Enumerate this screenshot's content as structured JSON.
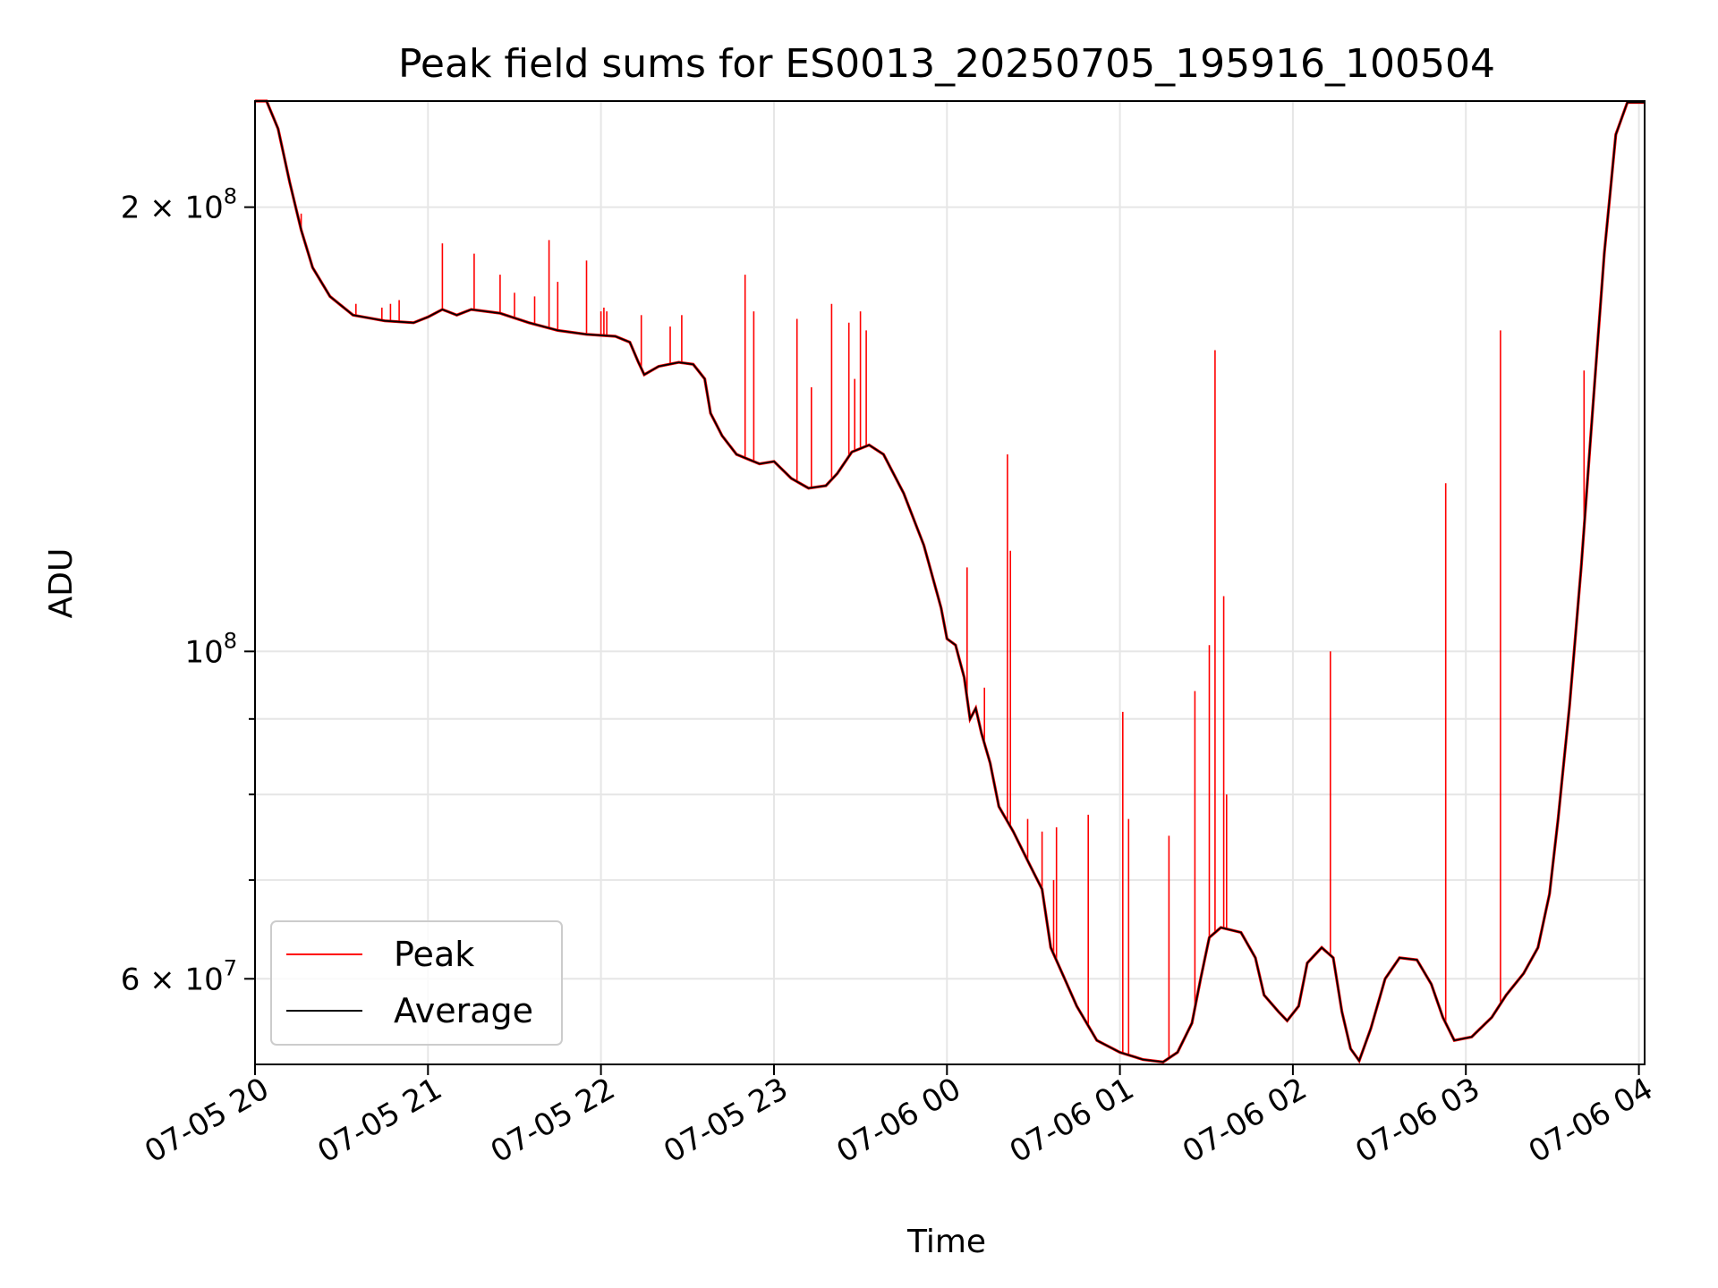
{
  "chart_data": {
    "type": "line",
    "title": "Peak field sums for ES0013_20250705_195916_100504",
    "xlabel": "Time",
    "ylabel": "ADU",
    "x_scale": "time",
    "y_scale": "log",
    "xlim": [
      "2025-07-05T20:00",
      "2025-07-06T04:02"
    ],
    "ylim": [
      52500000,
      236000000
    ],
    "x_ticks": [
      "2025-07-05T20:00",
      "2025-07-05T21:00",
      "2025-07-05T22:00",
      "2025-07-05T23:00",
      "2025-07-06T00:00",
      "2025-07-06T01:00",
      "2025-07-06T02:00",
      "2025-07-06T03:00",
      "2025-07-06T04:00"
    ],
    "x_tick_labels": [
      "07-05 20",
      "07-05 21",
      "07-05 22",
      "07-05 23",
      "07-06 00",
      "07-06 01",
      "07-06 02",
      "07-06 03",
      "07-06 04"
    ],
    "y_major_ticks": [
      {
        "value": 200000000,
        "mantissa": "2",
        "exponent": "8"
      },
      {
        "value": 100000000,
        "mantissa": "",
        "exponent": "8"
      },
      {
        "value": 60000000,
        "mantissa": "6",
        "exponent": "7"
      }
    ],
    "y_minor_ticks": [
      90000000,
      80000000,
      70000000
    ],
    "grid": true,
    "legend_position": "lower-left",
    "series": [
      {
        "name": "Peak",
        "color": "#ff0000",
        "role": "spikes",
        "points": [
          [
            "2025-07-05T20:16",
            198000000
          ],
          [
            "2025-07-05T20:18",
            188000000
          ],
          [
            "2025-07-05T20:35",
            172000000
          ],
          [
            "2025-07-05T20:44",
            171000000
          ],
          [
            "2025-07-05T20:47",
            172000000
          ],
          [
            "2025-07-05T20:50",
            173000000
          ],
          [
            "2025-07-05T21:05",
            189000000
          ],
          [
            "2025-07-05T21:16",
            186000000
          ],
          [
            "2025-07-05T21:25",
            180000000
          ],
          [
            "2025-07-05T21:30",
            175000000
          ],
          [
            "2025-07-05T21:37",
            174000000
          ],
          [
            "2025-07-05T21:42",
            190000000
          ],
          [
            "2025-07-05T21:45",
            178000000
          ],
          [
            "2025-07-05T21:55",
            184000000
          ],
          [
            "2025-07-05T22:00",
            170000000
          ],
          [
            "2025-07-05T22:01",
            171000000
          ],
          [
            "2025-07-05T22:02",
            170000000
          ],
          [
            "2025-07-05T22:14",
            169000000
          ],
          [
            "2025-07-05T22:24",
            166000000
          ],
          [
            "2025-07-05T22:28",
            169000000
          ],
          [
            "2025-07-05T22:50",
            180000000
          ],
          [
            "2025-07-05T22:53",
            170000000
          ],
          [
            "2025-07-05T23:08",
            168000000
          ],
          [
            "2025-07-05T23:13",
            151000000
          ],
          [
            "2025-07-05T23:20",
            172000000
          ],
          [
            "2025-07-05T23:26",
            167000000
          ],
          [
            "2025-07-05T23:30",
            170000000
          ],
          [
            "2025-07-05T23:32",
            165000000
          ],
          [
            "2025-07-05T23:28",
            153000000
          ],
          [
            "2025-07-06T00:07",
            114000000
          ],
          [
            "2025-07-06T00:13",
            94500000
          ],
          [
            "2025-07-06T00:21",
            136000000
          ],
          [
            "2025-07-06T00:22",
            117000000
          ],
          [
            "2025-07-06T00:28",
            77000000
          ],
          [
            "2025-07-06T00:33",
            75500000
          ],
          [
            "2025-07-06T00:37",
            70000000
          ],
          [
            "2025-07-06T00:38",
            76000000
          ],
          [
            "2025-07-06T00:49",
            77500000
          ],
          [
            "2025-07-06T01:01",
            91000000
          ],
          [
            "2025-07-06T01:03",
            77000000
          ],
          [
            "2025-07-06T01:17",
            75000000
          ],
          [
            "2025-07-06T01:26",
            94000000
          ],
          [
            "2025-07-06T01:31",
            101000000
          ],
          [
            "2025-07-06T01:33",
            160000000
          ],
          [
            "2025-07-06T01:36",
            109000000
          ],
          [
            "2025-07-06T01:37",
            80000000
          ],
          [
            "2025-07-06T02:13",
            100000000
          ],
          [
            "2025-07-06T02:53",
            130000000
          ],
          [
            "2025-07-06T03:12",
            165000000
          ],
          [
            "2025-07-06T03:41",
            155000000
          ]
        ]
      },
      {
        "name": "Average",
        "color": "#000000",
        "role": "baseline",
        "points": [
          [
            "2025-07-05T20:00",
            236000000
          ],
          [
            "2025-07-05T20:04",
            236000000
          ],
          [
            "2025-07-05T20:08",
            226000000
          ],
          [
            "2025-07-05T20:12",
            208000000
          ],
          [
            "2025-07-05T20:16",
            193000000
          ],
          [
            "2025-07-05T20:20",
            182000000
          ],
          [
            "2025-07-05T20:26",
            174000000
          ],
          [
            "2025-07-05T20:34",
            169000000
          ],
          [
            "2025-07-05T20:45",
            167500000
          ],
          [
            "2025-07-05T20:55",
            167000000
          ],
          [
            "2025-07-05T21:00",
            168500000
          ],
          [
            "2025-07-05T21:05",
            170500000
          ],
          [
            "2025-07-05T21:10",
            169000000
          ],
          [
            "2025-07-05T21:15",
            170500000
          ],
          [
            "2025-07-05T21:25",
            169500000
          ],
          [
            "2025-07-05T21:35",
            167000000
          ],
          [
            "2025-07-05T21:45",
            165000000
          ],
          [
            "2025-07-05T21:55",
            164000000
          ],
          [
            "2025-07-05T22:05",
            163500000
          ],
          [
            "2025-07-05T22:10",
            162000000
          ],
          [
            "2025-07-05T22:13",
            157000000
          ],
          [
            "2025-07-05T22:15",
            154000000
          ],
          [
            "2025-07-05T22:20",
            156000000
          ],
          [
            "2025-07-05T22:27",
            157000000
          ],
          [
            "2025-07-05T22:32",
            156500000
          ],
          [
            "2025-07-05T22:36",
            153000000
          ],
          [
            "2025-07-05T22:38",
            145000000
          ],
          [
            "2025-07-05T22:42",
            140000000
          ],
          [
            "2025-07-05T22:47",
            136000000
          ],
          [
            "2025-07-05T22:55",
            134000000
          ],
          [
            "2025-07-05T23:00",
            134500000
          ],
          [
            "2025-07-05T23:06",
            131000000
          ],
          [
            "2025-07-05T23:12",
            129000000
          ],
          [
            "2025-07-05T23:18",
            129500000
          ],
          [
            "2025-07-05T23:22",
            132000000
          ],
          [
            "2025-07-05T23:27",
            136500000
          ],
          [
            "2025-07-05T23:33",
            138000000
          ],
          [
            "2025-07-05T23:38",
            136000000
          ],
          [
            "2025-07-05T23:45",
            128000000
          ],
          [
            "2025-07-05T23:52",
            118000000
          ],
          [
            "2025-07-05T23:58",
            107000000
          ],
          [
            "2025-07-06T00:00",
            102000000
          ],
          [
            "2025-07-06T00:03",
            101000000
          ],
          [
            "2025-07-06T00:06",
            96000000
          ],
          [
            "2025-07-06T00:08",
            90000000
          ],
          [
            "2025-07-06T00:10",
            91500000
          ],
          [
            "2025-07-06T00:12",
            88000000
          ],
          [
            "2025-07-06T00:15",
            84000000
          ],
          [
            "2025-07-06T00:18",
            78500000
          ],
          [
            "2025-07-06T00:23",
            75500000
          ],
          [
            "2025-07-06T00:29",
            71500000
          ],
          [
            "2025-07-06T00:33",
            69000000
          ],
          [
            "2025-07-06T00:36",
            63000000
          ],
          [
            "2025-07-06T00:40",
            60500000
          ],
          [
            "2025-07-06T00:45",
            57500000
          ],
          [
            "2025-07-06T00:52",
            54500000
          ],
          [
            "2025-07-06T01:00",
            53500000
          ],
          [
            "2025-07-06T01:08",
            52900000
          ],
          [
            "2025-07-06T01:15",
            52700000
          ],
          [
            "2025-07-06T01:20",
            53500000
          ],
          [
            "2025-07-06T01:25",
            56000000
          ],
          [
            "2025-07-06T01:28",
            60000000
          ],
          [
            "2025-07-06T01:31",
            64000000
          ],
          [
            "2025-07-06T01:35",
            65000000
          ],
          [
            "2025-07-06T01:42",
            64500000
          ],
          [
            "2025-07-06T01:47",
            62000000
          ],
          [
            "2025-07-06T01:50",
            58500000
          ],
          [
            "2025-07-06T01:55",
            57000000
          ],
          [
            "2025-07-06T01:58",
            56200000
          ],
          [
            "2025-07-06T02:02",
            57500000
          ],
          [
            "2025-07-06T02:05",
            61500000
          ],
          [
            "2025-07-06T02:10",
            63000000
          ],
          [
            "2025-07-06T02:14",
            62000000
          ],
          [
            "2025-07-06T02:17",
            57000000
          ],
          [
            "2025-07-06T02:20",
            53800000
          ],
          [
            "2025-07-06T02:23",
            52800000
          ],
          [
            "2025-07-06T02:27",
            55500000
          ],
          [
            "2025-07-06T02:32",
            60000000
          ],
          [
            "2025-07-06T02:37",
            62000000
          ],
          [
            "2025-07-06T02:43",
            61800000
          ],
          [
            "2025-07-06T02:48",
            59500000
          ],
          [
            "2025-07-06T02:52",
            56500000
          ],
          [
            "2025-07-06T02:56",
            54500000
          ],
          [
            "2025-07-06T03:02",
            54800000
          ],
          [
            "2025-07-06T03:09",
            56500000
          ],
          [
            "2025-07-06T03:14",
            58500000
          ],
          [
            "2025-07-06T03:20",
            60500000
          ],
          [
            "2025-07-06T03:25",
            63000000
          ],
          [
            "2025-07-06T03:29",
            68500000
          ],
          [
            "2025-07-06T03:32",
            77000000
          ],
          [
            "2025-07-06T03:36",
            92000000
          ],
          [
            "2025-07-06T03:40",
            114000000
          ],
          [
            "2025-07-06T03:44",
            146000000
          ],
          [
            "2025-07-06T03:48",
            186000000
          ],
          [
            "2025-07-06T03:52",
            224000000
          ],
          [
            "2025-07-06T03:56",
            235500000
          ],
          [
            "2025-07-06T04:02",
            235500000
          ]
        ]
      }
    ]
  }
}
